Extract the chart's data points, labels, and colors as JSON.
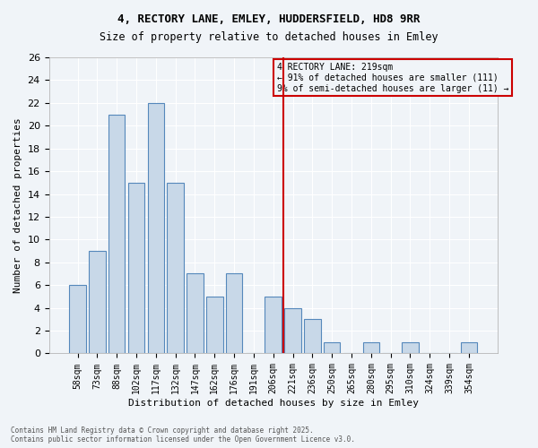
{
  "title1": "4, RECTORY LANE, EMLEY, HUDDERSFIELD, HD8 9RR",
  "title2": "Size of property relative to detached houses in Emley",
  "xlabel": "Distribution of detached houses by size in Emley",
  "ylabel": "Number of detached properties",
  "categories": [
    "58sqm",
    "73sqm",
    "88sqm",
    "102sqm",
    "117sqm",
    "132sqm",
    "147sqm",
    "162sqm",
    "176sqm",
    "191sqm",
    "206sqm",
    "221sqm",
    "236sqm",
    "250sqm",
    "265sqm",
    "280sqm",
    "295sqm",
    "310sqm",
    "324sqm",
    "339sqm",
    "354sqm"
  ],
  "values": [
    6,
    9,
    21,
    15,
    22,
    15,
    7,
    5,
    7,
    0,
    5,
    4,
    3,
    1,
    0,
    1,
    0,
    1,
    0,
    0,
    1
  ],
  "bar_color": "#c8d8e8",
  "bar_edge_color": "#5588bb",
  "vline_x_index": 10.5,
  "vline_color": "#cc0000",
  "annotation_title": "4 RECTORY LANE: 219sqm",
  "annotation_line1": "← 91% of detached houses are smaller (111)",
  "annotation_line2": "9% of semi-detached houses are larger (11) →",
  "annotation_box_color": "#cc0000",
  "ylim": [
    0,
    26
  ],
  "yticks": [
    0,
    2,
    4,
    6,
    8,
    10,
    12,
    14,
    16,
    18,
    20,
    22,
    24,
    26
  ],
  "background_color": "#f0f4f8",
  "grid_color": "#ffffff",
  "footer_line1": "Contains HM Land Registry data © Crown copyright and database right 2025.",
  "footer_line2": "Contains public sector information licensed under the Open Government Licence v3.0."
}
